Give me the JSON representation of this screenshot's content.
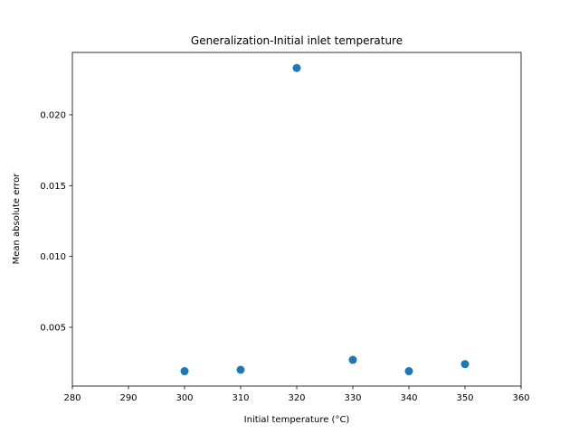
{
  "chart_data": {
    "type": "scatter",
    "title": "Generalization-Initial inlet temperature",
    "xlabel": "Initial temperature (°C)",
    "ylabel": "Mean absolute error",
    "xlim": [
      280,
      360
    ],
    "ylim": [
      0.00085,
      0.0244
    ],
    "xticks": [
      280,
      290,
      300,
      310,
      320,
      330,
      340,
      350,
      360
    ],
    "xtick_labels": [
      "280",
      "290",
      "300",
      "310",
      "320",
      "330",
      "340",
      "350",
      "360"
    ],
    "yticks": [
      0.005,
      0.01,
      0.015,
      0.02
    ],
    "ytick_labels": [
      "0.005",
      "0.010",
      "0.015",
      "0.020"
    ],
    "grid": false,
    "series": [
      {
        "color": "#1f77b4",
        "x": [
          300,
          310,
          320,
          330,
          340,
          350
        ],
        "y": [
          0.0019,
          0.002,
          0.0233,
          0.0027,
          0.0019,
          0.0024
        ]
      }
    ]
  }
}
